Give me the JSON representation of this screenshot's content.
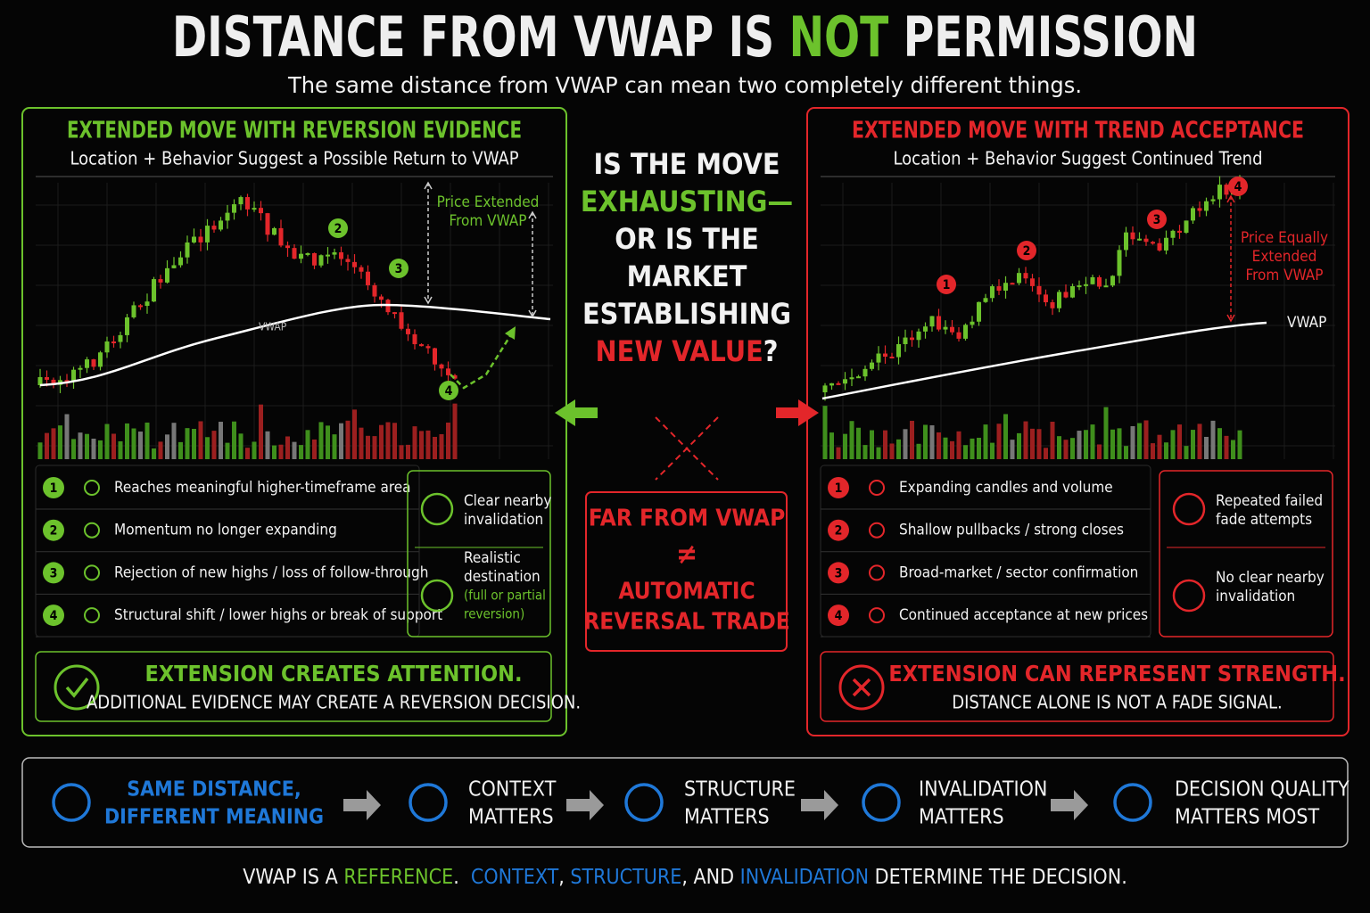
{
  "header": {
    "title": [
      "DISTANCE FROM VWAP IS ",
      "NOT",
      " PERMISSION"
    ],
    "subtitle": "The same distance from VWAP can mean two completely different things."
  },
  "left_panel": {
    "title": "EXTENDED MOVE WITH REVERSION EVIDENCE",
    "subtitle": "Location + Behavior Suggest a Possible Return to VWAP",
    "annotation": [
      "Price Extended",
      "From VWAP"
    ],
    "vwap_label": "VWAP",
    "markers": [
      "2",
      "3",
      "4"
    ],
    "items": [
      {
        "number": "1",
        "text": "Reaches meaningful higher-timeframe area"
      },
      {
        "number": "2",
        "text": "Momentum no longer expanding"
      },
      {
        "number": "3",
        "text": "Rejection of new highs / loss of follow-through"
      },
      {
        "number": "4",
        "text": "Structural shift / lower highs or break of support"
      }
    ],
    "side_notes": [
      [
        "Clear nearby",
        "invalidation"
      ],
      [
        "Realistic",
        "destination",
        "(full or partial",
        "reversion)"
      ]
    ],
    "conclusion": {
      "headline": "EXTENSION CREATES ATTENTION.",
      "text": "ADDITIONAL EVIDENCE MAY CREATE A REVERSION DECISION."
    }
  },
  "center": {
    "question": [
      [
        "IS THE MOVE"
      ],
      [
        "EXHAUSTING—"
      ],
      [
        "OR IS THE"
      ],
      [
        "MARKET"
      ],
      [
        "ESTABLISHING"
      ],
      [
        "NEW VALUE",
        "?"
      ]
    ],
    "verdict": [
      "FAR FROM VWAP",
      "≠",
      "AUTOMATIC",
      "REVERSAL TRADE"
    ]
  },
  "right_panel": {
    "title": "EXTENDED MOVE WITH TREND ACCEPTANCE",
    "subtitle": "Location + Behavior Suggest Continued Trend",
    "annotation": [
      "Price Equally",
      "Extended",
      "From VWAP"
    ],
    "vwap_label": "VWAP",
    "markers": [
      "1",
      "2",
      "3",
      "4"
    ],
    "items": [
      {
        "number": "1",
        "text": "Expanding candles and volume"
      },
      {
        "number": "2",
        "text": "Shallow pullbacks / strong closes"
      },
      {
        "number": "3",
        "text": "Broad-market / sector confirmation"
      },
      {
        "number": "4",
        "text": "Continued acceptance at new prices"
      }
    ],
    "side_notes": [
      [
        "Repeated failed",
        "fade attempts"
      ],
      [
        "No clear nearby",
        "invalidation"
      ]
    ],
    "conclusion": {
      "headline": "EXTENSION CAN REPRESENT STRENGTH.",
      "text": "DISTANCE ALONE IS NOT A FADE SIGNAL."
    }
  },
  "flow": [
    [
      "SAME DISTANCE,",
      "DIFFERENT MEANING"
    ],
    [
      "CONTEXT",
      "MATTERS"
    ],
    [
      "STRUCTURE",
      "MATTERS"
    ],
    [
      "INVALIDATION",
      "MATTERS"
    ],
    [
      "DECISION QUALITY",
      "MATTERS MOST"
    ]
  ],
  "footer": [
    "VWAP IS A ",
    "REFERENCE",
    ".  ",
    "CONTEXT",
    ", ",
    "STRUCTURE",
    ", AND ",
    "INVALIDATION",
    " DETERMINE THE DECISION."
  ]
}
